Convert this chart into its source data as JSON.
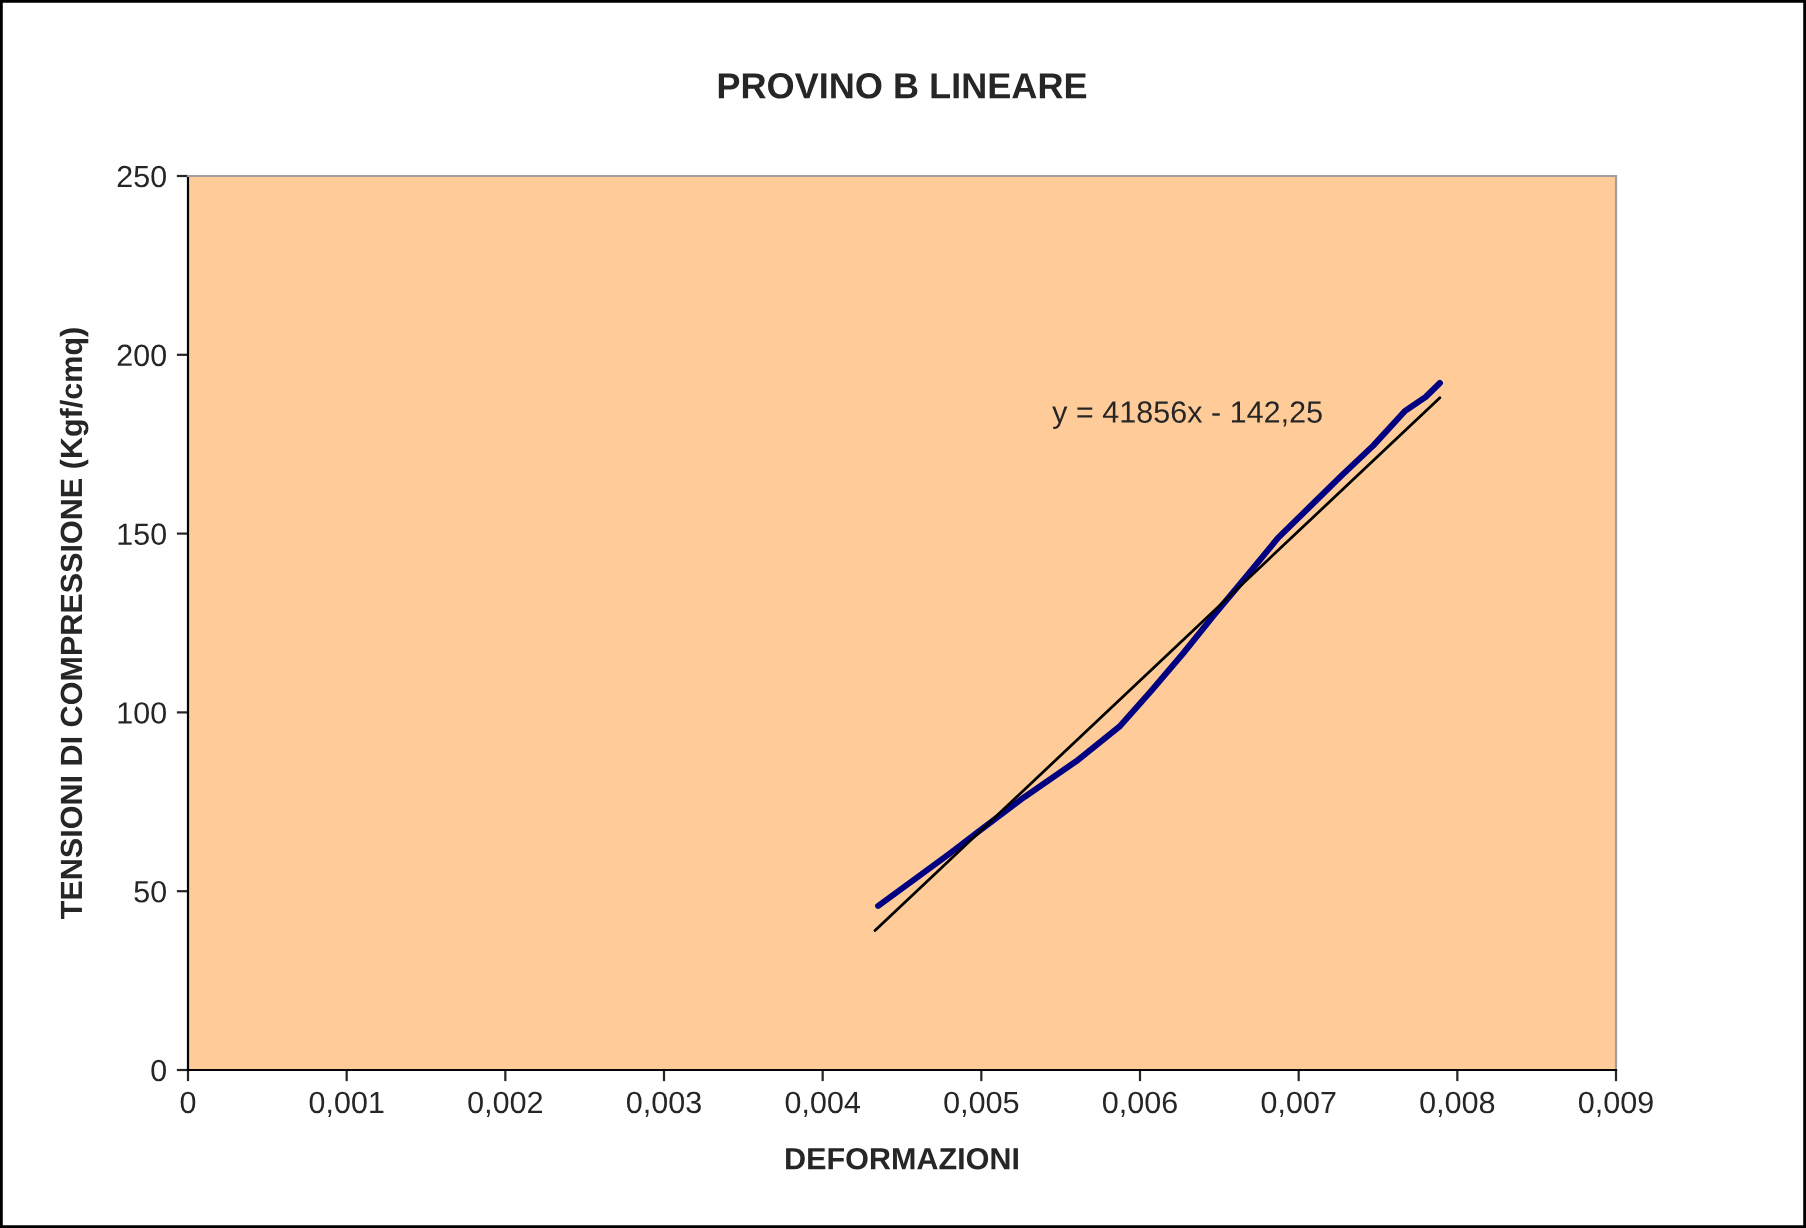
{
  "chart_data": {
    "type": "line",
    "title": "PROVINO B LINEARE",
    "xlabel": "DEFORMAZIONI",
    "ylabel": "TENSIONI DI COMPRESSIONE (Kgf/cmq)",
    "xlim": [
      0,
      0.009
    ],
    "xticks": [
      {
        "value": 0,
        "label": "0"
      },
      {
        "value": 0.001,
        "label": "0,001"
      },
      {
        "value": 0.002,
        "label": "0,002"
      },
      {
        "value": 0.003,
        "label": "0,003"
      },
      {
        "value": 0.004,
        "label": "0,004"
      },
      {
        "value": 0.005,
        "label": "0,005"
      },
      {
        "value": 0.006,
        "label": "0,006"
      },
      {
        "value": 0.007,
        "label": "0,007"
      },
      {
        "value": 0.008,
        "label": "0,008"
      },
      {
        "value": 0.009,
        "label": "0,009"
      }
    ],
    "ylim": [
      0,
      250
    ],
    "yticks": [
      0,
      50,
      100,
      150,
      200,
      250
    ],
    "grid": false,
    "legend": false,
    "marker": "none",
    "line_style": "solid",
    "series": [
      {
        "color": "#000080",
        "x": [
          0.00435,
          0.0046,
          0.0048,
          0.005,
          0.00527,
          0.0056,
          0.00587,
          0.00607,
          0.00627,
          0.00647,
          0.00667,
          0.00687,
          0.00707,
          0.00727,
          0.00747,
          0.00767,
          0.0078,
          0.00789
        ],
        "values": [
          45.9,
          54,
          60.5,
          67.3,
          76.3,
          86.4,
          96,
          106,
          116.4,
          127.4,
          138,
          148.8,
          157.5,
          166.2,
          174.6,
          184.3,
          188.2,
          192.1
        ]
      },
      {
        "color": "#000000",
        "x": [
          0.00433,
          0.00789
        ],
        "values": [
          39.0,
          188.0
        ]
      }
    ],
    "annotations": [
      "y = 41856x - 142,25"
    ]
  }
}
